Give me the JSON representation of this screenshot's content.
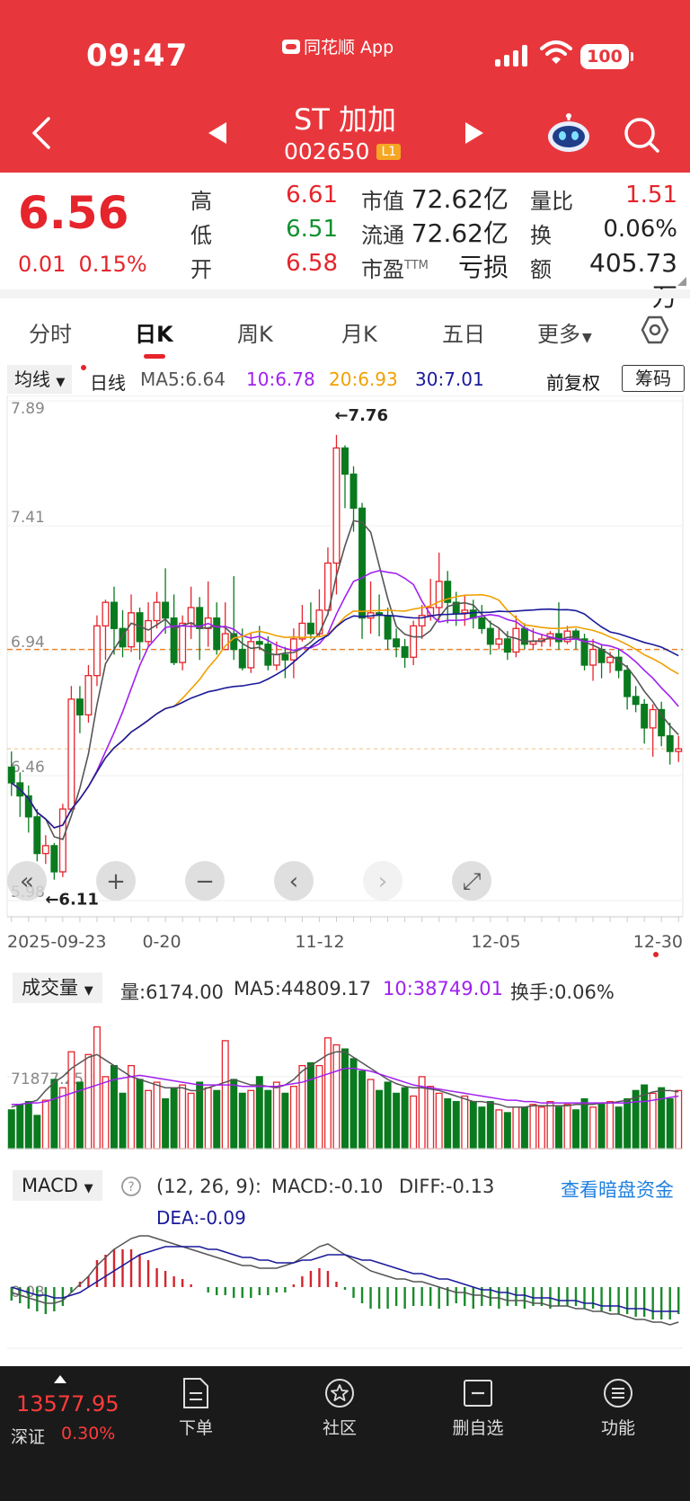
{
  "status_bar": {
    "time": "09:47",
    "app_name": "同花顺 App",
    "battery": "100",
    "icons": [
      "signal-icon",
      "wifi-icon",
      "battery-icon"
    ]
  },
  "nav": {
    "stock_name": "ST 加加",
    "stock_code": "002650",
    "level_badge": "L1",
    "icons": [
      "back-icon",
      "prev-stock-icon",
      "next-stock-icon",
      "assistant-robot-icon",
      "search-icon"
    ]
  },
  "quote": {
    "price": "6.56",
    "change": "0.01",
    "change_pct": "0.15%",
    "high_label": "高",
    "high": "6.61",
    "low_label": "低",
    "low": "6.51",
    "open_label": "开",
    "open": "6.58",
    "mktcap_label": "市值",
    "mktcap": "72.62亿",
    "float_label": "流通",
    "float_cap": "72.62亿",
    "pe_label": "市盈",
    "pe_suffix": "TTM",
    "pe": "亏损",
    "vol_ratio_label": "量比",
    "vol_ratio": "1.51",
    "turnover_label": "换",
    "turnover": "0.06%",
    "amount_label": "额",
    "amount": "405.73万"
  },
  "tabs": [
    {
      "label": "分时"
    },
    {
      "label": "日K"
    },
    {
      "label": "周K"
    },
    {
      "label": "月K"
    },
    {
      "label": "五日"
    },
    {
      "label": "更多"
    }
  ],
  "ma_bar": {
    "select_label": "均线",
    "period": "日线",
    "ma5": "MA5:6.64",
    "ma10": "10:6.78",
    "ma20": "20:6.93",
    "ma30": "30:7.01",
    "adjust": "前复权",
    "chips_button": "筹码",
    "colors": {
      "ma5": "#555555",
      "ma10": "#a020f0",
      "ma20": "#f0a000",
      "ma30": "#1a1a9a"
    }
  },
  "chart_data": [
    {
      "type": "candlestick",
      "y_tick_labels": [
        "7.89",
        "7.41",
        "6.94",
        "6.46",
        "5.98"
      ],
      "ylim": [
        5.98,
        7.89
      ],
      "x_tick_labels": [
        "2025-09-23",
        "0-20",
        "11-12",
        "12-05",
        "12-30"
      ],
      "reference_lines": [
        6.94,
        6.56
      ],
      "max_annotation": "←7.76",
      "min_annotation": "←6.11",
      "up_color": "#e5242b",
      "down_color": "#0a7a1e",
      "candles": [
        [
          6.49,
          6.43,
          6.55,
          6.38
        ],
        [
          6.43,
          6.38,
          6.47,
          6.3
        ],
        [
          6.38,
          6.3,
          6.42,
          6.24
        ],
        [
          6.3,
          6.16,
          6.33,
          6.13
        ],
        [
          6.16,
          6.19,
          6.23,
          6.12
        ],
        [
          6.19,
          6.09,
          6.2,
          6.06
        ],
        [
          6.09,
          6.33,
          6.35,
          6.07
        ],
        [
          6.33,
          6.75,
          6.8,
          6.32
        ],
        [
          6.75,
          6.69,
          6.8,
          6.62
        ],
        [
          6.69,
          6.84,
          6.88,
          6.66
        ],
        [
          6.84,
          7.03,
          7.07,
          6.8
        ],
        [
          7.03,
          7.12,
          7.13,
          6.9
        ],
        [
          7.12,
          7.02,
          7.18,
          6.92
        ],
        [
          7.02,
          6.95,
          7.09,
          6.91
        ],
        [
          6.95,
          7.08,
          7.15,
          6.93
        ],
        [
          7.08,
          6.97,
          7.1,
          6.9
        ],
        [
          6.97,
          7.05,
          7.12,
          6.95
        ],
        [
          7.05,
          7.12,
          7.16,
          7.02
        ],
        [
          7.12,
          7.06,
          7.25,
          7.0
        ],
        [
          7.06,
          6.89,
          7.15,
          6.88
        ],
        [
          6.89,
          7.04,
          7.07,
          6.86
        ],
        [
          7.04,
          7.1,
          7.18,
          6.98
        ],
        [
          7.1,
          7.02,
          7.14,
          6.9
        ],
        [
          7.02,
          7.06,
          7.2,
          6.95
        ],
        [
          7.06,
          6.94,
          7.12,
          6.92
        ],
        [
          6.94,
          7.0,
          7.12,
          6.94
        ],
        [
          7.0,
          6.94,
          7.22,
          6.9
        ],
        [
          6.94,
          6.87,
          7.02,
          6.86
        ],
        [
          6.87,
          6.97,
          7.0,
          6.85
        ],
        [
          6.97,
          6.96,
          7.03,
          6.94
        ],
        [
          6.96,
          6.88,
          6.99,
          6.86
        ],
        [
          6.88,
          6.92,
          6.97,
          6.86
        ],
        [
          6.92,
          6.9,
          6.95,
          6.83
        ],
        [
          6.9,
          6.98,
          7.02,
          6.83
        ],
        [
          6.98,
          7.04,
          7.11,
          6.97
        ],
        [
          7.04,
          7.0,
          7.12,
          6.98
        ],
        [
          7.0,
          7.09,
          7.17,
          6.99
        ],
        [
          7.09,
          7.27,
          7.33,
          7.07
        ],
        [
          7.27,
          7.71,
          7.76,
          7.15
        ],
        [
          7.71,
          7.61,
          7.72,
          7.48
        ],
        [
          7.61,
          7.48,
          7.64,
          7.39
        ],
        [
          7.48,
          7.06,
          7.5,
          6.98
        ],
        [
          7.06,
          7.08,
          7.2,
          7.0
        ],
        [
          7.08,
          7.07,
          7.15,
          6.99
        ],
        [
          7.07,
          6.98,
          7.1,
          6.94
        ],
        [
          6.98,
          6.95,
          7.02,
          6.91
        ],
        [
          6.95,
          6.91,
          6.98,
          6.87
        ],
        [
          6.91,
          7.03,
          7.05,
          6.88
        ],
        [
          7.03,
          7.07,
          7.11,
          6.98
        ],
        [
          7.07,
          7.1,
          7.21,
          7.05
        ],
        [
          7.1,
          7.2,
          7.31,
          7.05
        ],
        [
          7.2,
          7.12,
          7.24,
          7.04
        ],
        [
          7.12,
          7.08,
          7.16,
          7.03
        ],
        [
          7.08,
          7.09,
          7.15,
          7.03
        ],
        [
          7.09,
          7.06,
          7.13,
          7.02
        ],
        [
          7.06,
          7.02,
          7.11,
          7.0
        ],
        [
          7.02,
          6.96,
          7.05,
          6.92
        ],
        [
          6.96,
          6.98,
          7.02,
          6.94
        ],
        [
          6.98,
          6.93,
          7.01,
          6.9
        ],
        [
          6.93,
          7.02,
          7.07,
          6.91
        ],
        [
          7.02,
          6.96,
          7.04,
          6.94
        ],
        [
          6.96,
          6.97,
          7.02,
          6.94
        ],
        [
          6.97,
          6.98,
          7.0,
          6.95
        ],
        [
          6.98,
          7.0,
          7.01,
          6.95
        ],
        [
          7.0,
          6.97,
          7.12,
          6.94
        ],
        [
          6.97,
          7.01,
          7.03,
          6.96
        ],
        [
          7.01,
          6.98,
          7.02,
          6.94
        ],
        [
          6.98,
          6.88,
          7.0,
          6.86
        ],
        [
          6.88,
          6.94,
          6.98,
          6.82
        ],
        [
          6.94,
          6.89,
          6.96,
          6.83
        ],
        [
          6.89,
          6.91,
          6.93,
          6.85
        ],
        [
          6.91,
          6.86,
          6.94,
          6.83
        ],
        [
          6.86,
          6.76,
          6.88,
          6.71
        ],
        [
          6.76,
          6.73,
          6.8,
          6.7
        ],
        [
          6.73,
          6.64,
          6.75,
          6.58
        ],
        [
          6.64,
          6.71,
          6.73,
          6.53
        ],
        [
          6.71,
          6.61,
          6.74,
          6.57
        ],
        [
          6.61,
          6.55,
          6.66,
          6.5
        ],
        [
          6.55,
          6.56,
          6.61,
          6.51
        ]
      ]
    },
    {
      "type": "bar",
      "title": "成交量",
      "vol_label": "量:6174.00",
      "ma5_label": "MA5:44809.17",
      "ma10_label": "10:38749.01",
      "turnover_label": "换手:0.06%",
      "y_tick_label": "71877.25",
      "values": [
        28,
        32,
        34,
        24,
        35,
        50,
        44,
        70,
        48,
        68,
        88,
        52,
        60,
        40,
        60,
        50,
        42,
        48,
        36,
        44,
        46,
        40,
        48,
        44,
        42,
        78,
        50,
        40,
        42,
        52,
        42,
        48,
        40,
        45,
        60,
        62,
        60,
        80,
        75,
        72,
        65,
        56,
        50,
        42,
        48,
        40,
        44,
        38,
        52,
        45,
        40,
        36,
        34,
        38,
        34,
        30,
        34,
        28,
        26,
        30,
        30,
        32,
        30,
        34,
        30,
        32,
        28,
        36,
        30,
        32,
        34,
        30,
        36,
        42,
        46,
        40,
        44,
        36,
        42
      ],
      "ma5": [
        30,
        32,
        33,
        35,
        42,
        48,
        52,
        58,
        62,
        66,
        68,
        64,
        60,
        56,
        52,
        50,
        48,
        46,
        44,
        44,
        44,
        42,
        42,
        44,
        46,
        48,
        50,
        48,
        46,
        46,
        45,
        44,
        46,
        50,
        56,
        60,
        64,
        68,
        70,
        70,
        66,
        62,
        58,
        54,
        50,
        47,
        45,
        44,
        44,
        43,
        42,
        40,
        38,
        36,
        34,
        34,
        33,
        32,
        30,
        30,
        30,
        31,
        31,
        31,
        31,
        31,
        32,
        32,
        32,
        33,
        33,
        34,
        35,
        37,
        39,
        41,
        42,
        42,
        41
      ],
      "ma10": [
        32,
        32,
        33,
        33,
        34,
        36,
        38,
        40,
        42,
        44,
        46,
        48,
        50,
        51,
        52,
        53,
        52,
        51,
        50,
        49,
        48,
        47,
        46,
        46,
        46,
        46,
        46,
        45,
        45,
        45,
        45,
        45,
        46,
        47,
        48,
        50,
        52,
        54,
        56,
        58,
        58,
        57,
        56,
        54,
        52,
        50,
        48,
        46,
        45,
        44,
        43,
        42,
        41,
        40,
        39,
        38,
        37,
        36,
        35,
        35,
        34,
        34,
        33,
        33,
        33,
        33,
        33,
        33,
        33,
        33,
        33,
        33,
        33,
        34,
        34,
        35,
        36,
        37,
        38
      ]
    },
    {
      "type": "bar",
      "title": "MACD",
      "params": "(12, 26, 9):",
      "macd_label": "MACD:-0.10",
      "diff_label": "DIFF:-0.13",
      "dea_label": "DEA:-0.09",
      "y_tick_label": "0.03",
      "link": "查看暗盘资金",
      "hist": [
        -0.05,
        -0.06,
        -0.08,
        -0.09,
        -0.1,
        -0.09,
        -0.07,
        -0.02,
        0.02,
        0.04,
        0.1,
        0.12,
        0.14,
        0.14,
        0.14,
        0.12,
        0.1,
        0.07,
        0.06,
        0.04,
        0.03,
        0.01,
        0.0,
        -0.02,
        -0.03,
        -0.03,
        -0.04,
        -0.04,
        -0.04,
        -0.03,
        -0.03,
        -0.02,
        -0.02,
        0.01,
        0.04,
        0.06,
        0.07,
        0.06,
        0.02,
        -0.01,
        -0.04,
        -0.06,
        -0.08,
        -0.08,
        -0.08,
        -0.07,
        -0.08,
        -0.07,
        -0.07,
        -0.07,
        -0.08,
        -0.07,
        -0.06,
        -0.07,
        -0.08,
        -0.07,
        -0.07,
        -0.08,
        -0.07,
        -0.07,
        -0.08,
        -0.07,
        -0.07,
        -0.08,
        -0.07,
        -0.07,
        -0.07,
        -0.08,
        -0.08,
        -0.09,
        -0.09,
        -0.1,
        -0.1,
        -0.11,
        -0.11,
        -0.12,
        -0.12,
        -0.12,
        -0.1
      ],
      "diff": [
        -0.02,
        -0.03,
        -0.04,
        -0.05,
        -0.06,
        -0.06,
        -0.05,
        -0.02,
        0.01,
        0.04,
        0.08,
        0.11,
        0.14,
        0.16,
        0.18,
        0.19,
        0.19,
        0.18,
        0.17,
        0.16,
        0.15,
        0.14,
        0.13,
        0.12,
        0.11,
        0.1,
        0.09,
        0.08,
        0.08,
        0.07,
        0.07,
        0.07,
        0.08,
        0.09,
        0.11,
        0.13,
        0.15,
        0.16,
        0.14,
        0.12,
        0.1,
        0.08,
        0.06,
        0.05,
        0.04,
        0.03,
        0.03,
        0.02,
        0.02,
        0.01,
        0.0,
        -0.01,
        -0.02,
        -0.02,
        -0.03,
        -0.03,
        -0.04,
        -0.04,
        -0.05,
        -0.05,
        -0.05,
        -0.06,
        -0.06,
        -0.07,
        -0.07,
        -0.07,
        -0.08,
        -0.08,
        -0.09,
        -0.09,
        -0.1,
        -0.1,
        -0.11,
        -0.12,
        -0.12,
        -0.13,
        -0.13,
        -0.14,
        -0.13
      ],
      "dea": [
        0.0,
        -0.01,
        -0.02,
        -0.03,
        -0.03,
        -0.04,
        -0.04,
        -0.03,
        -0.02,
        0.0,
        0.02,
        0.04,
        0.06,
        0.08,
        0.1,
        0.12,
        0.13,
        0.14,
        0.15,
        0.15,
        0.15,
        0.15,
        0.15,
        0.14,
        0.14,
        0.13,
        0.12,
        0.11,
        0.11,
        0.1,
        0.1,
        0.09,
        0.09,
        0.09,
        0.1,
        0.1,
        0.11,
        0.12,
        0.12,
        0.12,
        0.11,
        0.1,
        0.1,
        0.09,
        0.08,
        0.07,
        0.06,
        0.05,
        0.05,
        0.04,
        0.03,
        0.03,
        0.02,
        0.01,
        0.0,
        -0.01,
        -0.01,
        -0.02,
        -0.02,
        -0.03,
        -0.03,
        -0.04,
        -0.04,
        -0.04,
        -0.05,
        -0.05,
        -0.05,
        -0.06,
        -0.06,
        -0.07,
        -0.07,
        -0.07,
        -0.08,
        -0.08,
        -0.08,
        -0.09,
        -0.09,
        -0.09,
        -0.09
      ]
    }
  ],
  "bottom_bar": {
    "index_value": "13577.95",
    "index_name": "深证",
    "index_pct": "0.30%",
    "items": [
      {
        "label": "下单"
      },
      {
        "label": "社区"
      },
      {
        "label": "删自选"
      },
      {
        "label": "功能"
      }
    ]
  }
}
